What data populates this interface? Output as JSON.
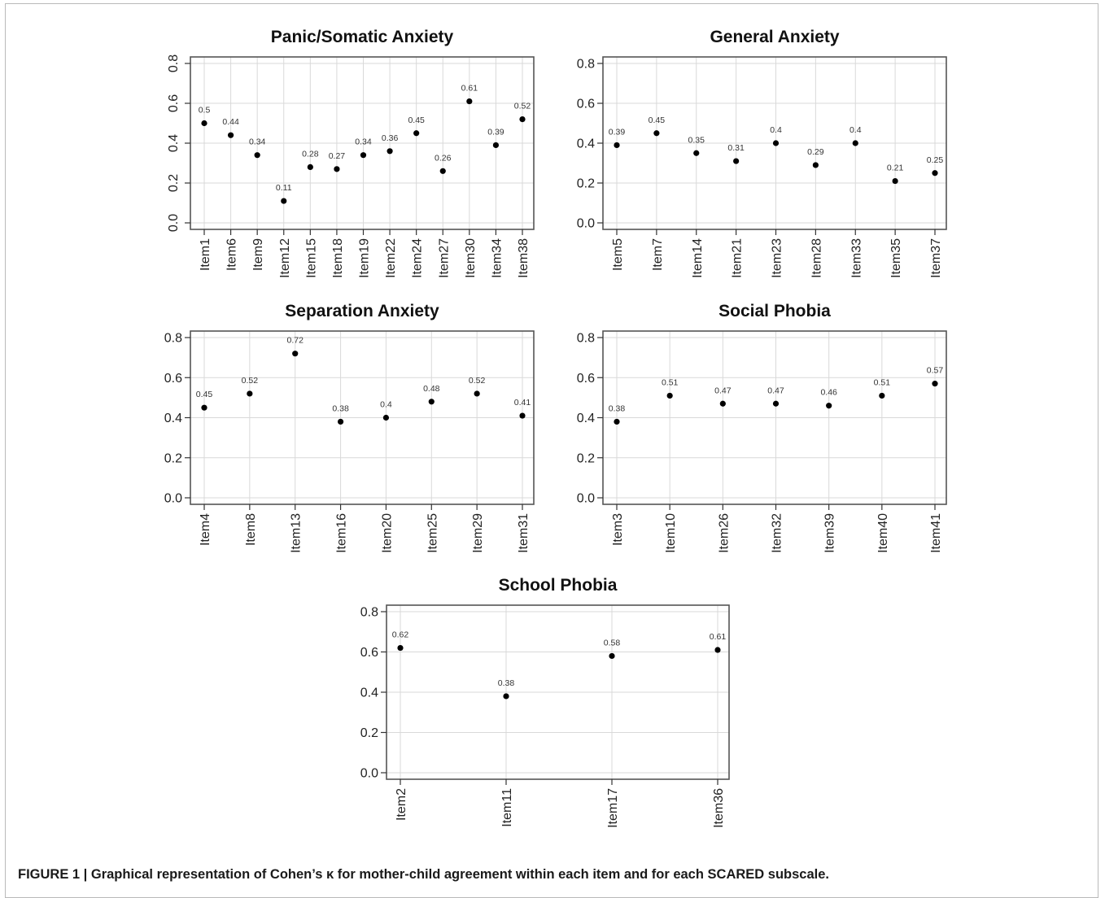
{
  "caption": "FIGURE 1 | Graphical representation of Cohen’s κ for mother-child agreement within each item and for each SCARED subscale.",
  "chart_data": [
    {
      "type": "scatter",
      "title": "Panic/Somatic Anxiety",
      "categories": [
        "Item1",
        "Item6",
        "Item9",
        "Item12",
        "Item15",
        "Item18",
        "Item19",
        "Item22",
        "Item24",
        "Item27",
        "Item30",
        "Item34",
        "Item38"
      ],
      "values": [
        0.5,
        0.44,
        0.34,
        0.11,
        0.28,
        0.27,
        0.34,
        0.36,
        0.45,
        0.26,
        0.61,
        0.39,
        0.52
      ],
      "labels": [
        "0.5",
        "0.44",
        "0.34",
        "0.11",
        "0.28",
        "0.27",
        "0.34",
        "0.36",
        "0.45",
        "0.26",
        "0.61",
        "0.39",
        "0.52"
      ],
      "ylim": [
        0,
        0.8
      ],
      "yticks": [
        "0.0",
        "0.2",
        "0.4",
        "0.6",
        "0.8"
      ],
      "ytick_rotated": true,
      "grid": true
    },
    {
      "type": "scatter",
      "title": "General Anxiety",
      "categories": [
        "Item5",
        "Item7",
        "Item14",
        "Item21",
        "Item23",
        "Item28",
        "Item33",
        "Item35",
        "Item37"
      ],
      "values": [
        0.39,
        0.45,
        0.35,
        0.31,
        0.4,
        0.29,
        0.4,
        0.21,
        0.25
      ],
      "labels": [
        "0.39",
        "0.45",
        "0.35",
        "0.31",
        "0.4",
        "0.29",
        "0.4",
        "0.21",
        "0.25"
      ],
      "ylim": [
        0,
        0.8
      ],
      "yticks": [
        "0.0",
        "0.2",
        "0.4",
        "0.6",
        "0.8"
      ],
      "ytick_rotated": false,
      "grid": true
    },
    {
      "type": "scatter",
      "title": "Separation Anxiety",
      "categories": [
        "Item4",
        "Item8",
        "Item13",
        "Item16",
        "Item20",
        "Item25",
        "Item29",
        "Item31"
      ],
      "values": [
        0.45,
        0.52,
        0.72,
        0.38,
        0.4,
        0.48,
        0.52,
        0.41
      ],
      "labels": [
        "0.45",
        "0.52",
        "0.72",
        "0.38",
        "0.4",
        "0.48",
        "0.52",
        "0.41"
      ],
      "ylim": [
        0,
        0.8
      ],
      "yticks": [
        "0.0",
        "0.2",
        "0.4",
        "0.6",
        "0.8"
      ],
      "ytick_rotated": false,
      "grid": true
    },
    {
      "type": "scatter",
      "title": "Social Phobia",
      "categories": [
        "Item3",
        "Item10",
        "Item26",
        "Item32",
        "Item39",
        "Item40",
        "Item41"
      ],
      "values": [
        0.38,
        0.51,
        0.47,
        0.47,
        0.46,
        0.51,
        0.57
      ],
      "labels": [
        "0.38",
        "0.51",
        "0.47",
        "0.47",
        "0.46",
        "0.51",
        "0.57"
      ],
      "ylim": [
        0,
        0.8
      ],
      "yticks": [
        "0.0",
        "0.2",
        "0.4",
        "0.6",
        "0.8"
      ],
      "ytick_rotated": false,
      "grid": true
    },
    {
      "type": "scatter",
      "title": "School Phobia",
      "categories": [
        "Item2",
        "Item11",
        "Item17",
        "Item36"
      ],
      "values": [
        0.62,
        0.38,
        0.58,
        0.61
      ],
      "labels": [
        "0.62",
        "0.38",
        "0.58",
        "0.61"
      ],
      "ylim": [
        0,
        0.8
      ],
      "yticks": [
        "0.0",
        "0.2",
        "0.4",
        "0.6",
        "0.8"
      ],
      "ytick_rotated": false,
      "grid": true
    }
  ]
}
